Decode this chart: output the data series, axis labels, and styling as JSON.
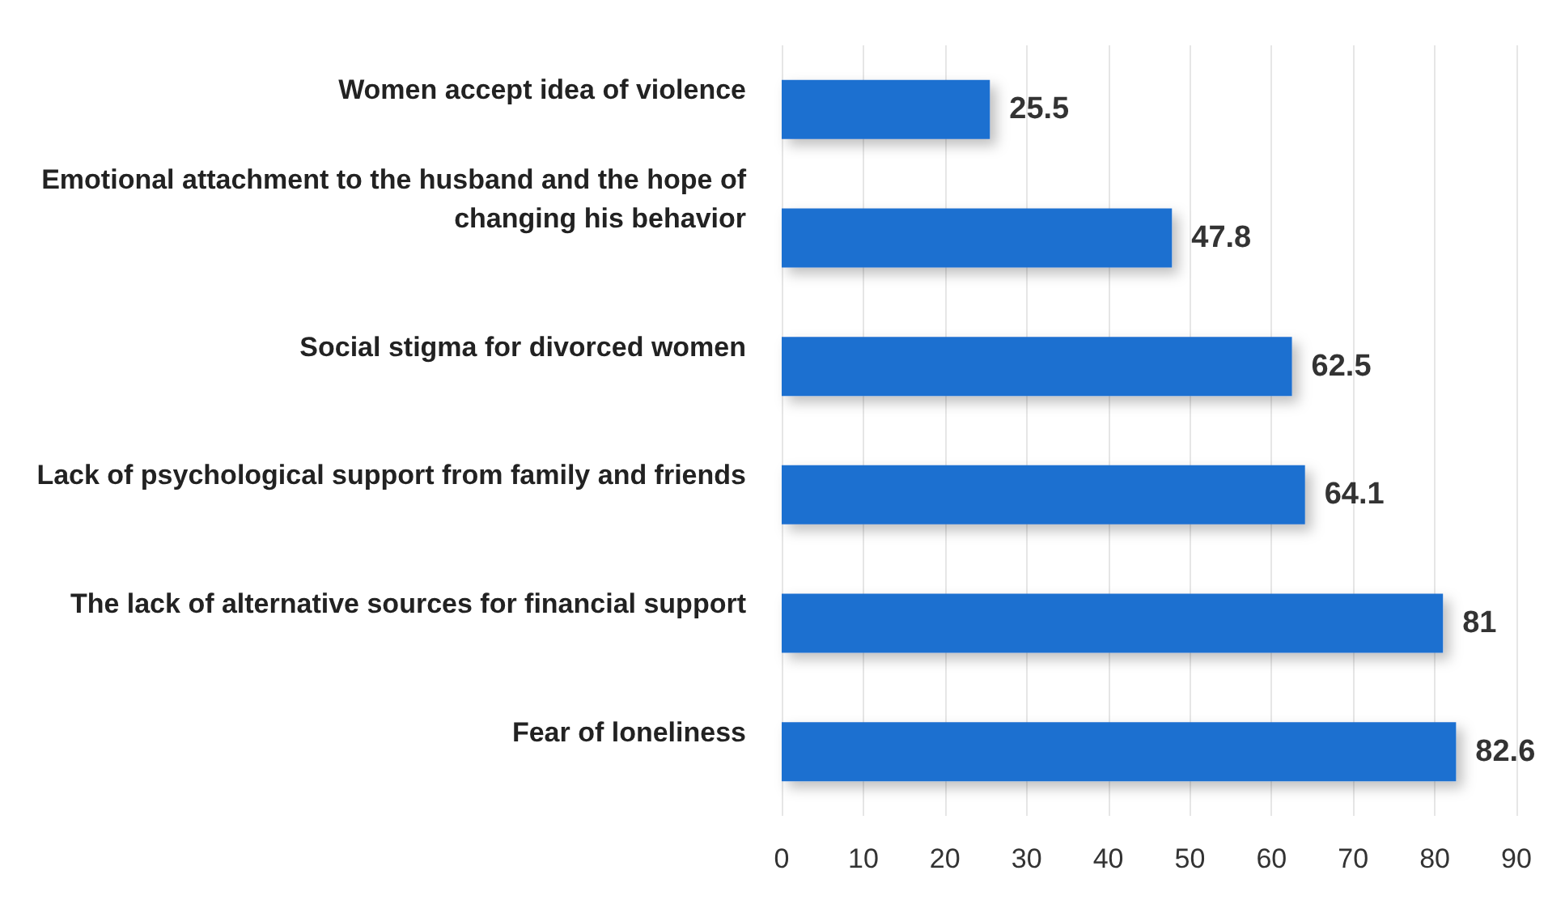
{
  "chart_data": {
    "type": "bar",
    "orientation": "horizontal",
    "categories": [
      "Women accept idea of violence",
      "Emotional attachment to the husband and the hope of changing his behavior",
      "Social stigma for divorced women",
      "Lack of psychological support from family and friends",
      "The lack of alternative sources for financial support",
      "Fear of loneliness"
    ],
    "values": [
      25.5,
      47.8,
      62.5,
      64.1,
      81,
      82.6
    ],
    "color": "#1f6fd0",
    "xlim": [
      0,
      90
    ],
    "xticks": [
      0,
      10,
      20,
      30,
      40,
      50,
      60,
      70,
      80,
      90
    ],
    "grid": "x",
    "data_labels": true
  }
}
